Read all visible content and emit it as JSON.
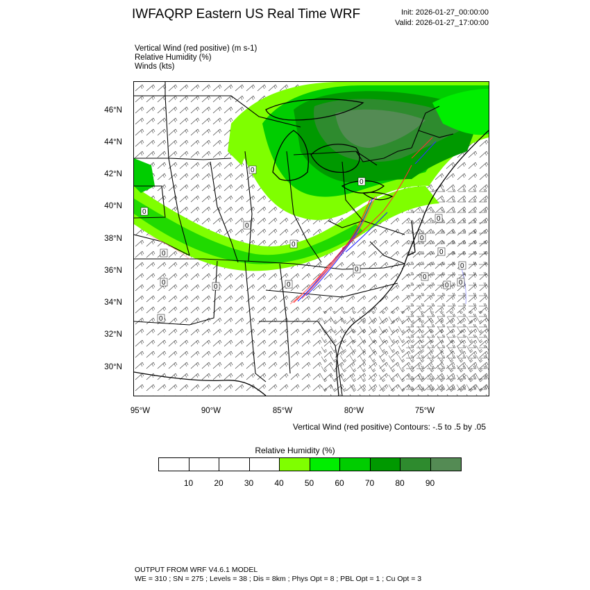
{
  "header": {
    "title": "IWFAQRP Eastern US Real Time WRF",
    "init": "Init: 2026-01-27_00:00:00",
    "valid": "Valid: 2026-01-27_17:00:00"
  },
  "fields": [
    "Vertical Wind (red positive)   (m s-1)",
    "Relative Humidity   (%)",
    "Winds   (kts)"
  ],
  "axes": {
    "lat_labels": [
      "46°N",
      "44°N",
      "42°N",
      "40°N",
      "38°N",
      "36°N",
      "34°N",
      "32°N",
      "30°N"
    ],
    "lon_labels": [
      "95°W",
      "90°W",
      "85°W",
      "80°W",
      "75°W"
    ]
  },
  "contour_note": "Vertical Wind (red positive) Contours: -.5 to .5 by .05",
  "colorbar": {
    "title": "Relative Humidity  (%)",
    "labels": [
      "10",
      "20",
      "30",
      "40",
      "50",
      "60",
      "70",
      "80",
      "90"
    ],
    "colors": [
      "#ffffff",
      "#ffffff",
      "#ffffff",
      "#ffffff",
      "#7fff00",
      "#00ee00",
      "#00cd00",
      "#009900",
      "#2e8b2e",
      "#548b54"
    ]
  },
  "contour_labels": [
    "0",
    "0",
    "0",
    "0",
    "0",
    "0",
    "0",
    "0",
    "0",
    "0",
    "0",
    "0",
    "0",
    "0",
    "0",
    "0",
    "0",
    "0"
  ],
  "footer": {
    "line1": "OUTPUT FROM WRF V4.6.1 MODEL",
    "line2": "WE = 310 ; SN = 275 ; Levels = 38 ; Dis = 8km ; Phys Opt = 8 ; PBL Opt = 1 ; Cu Opt = 3"
  }
}
